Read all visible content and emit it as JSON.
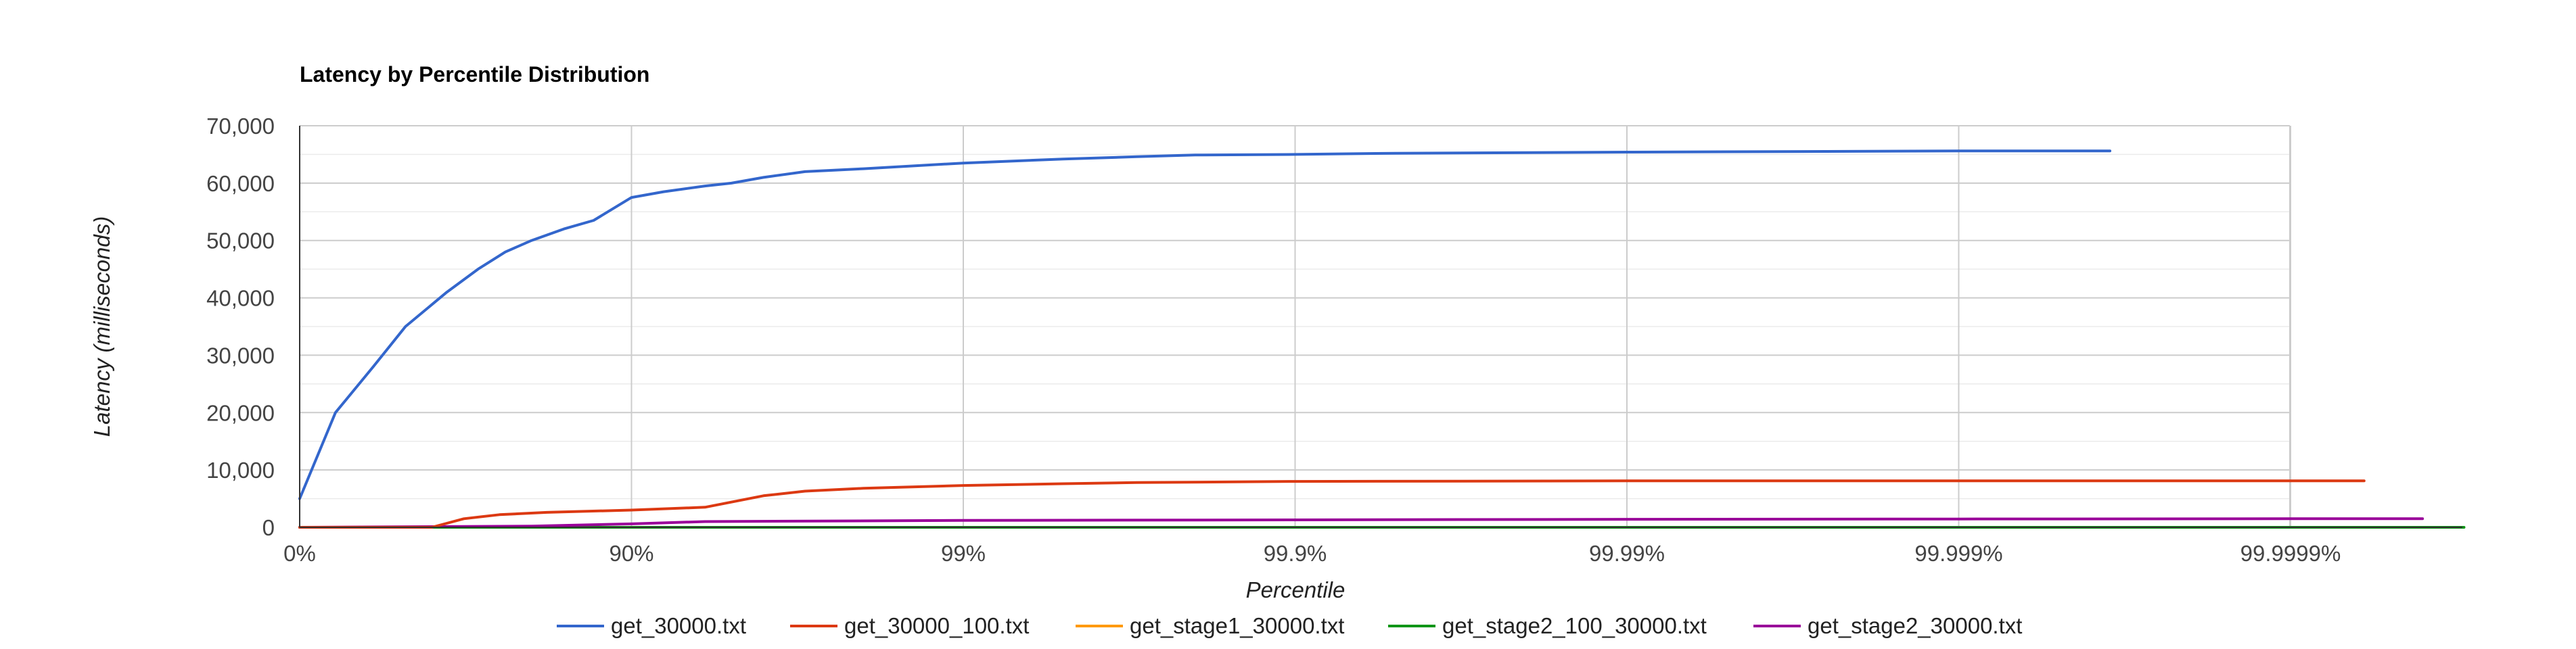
{
  "chart_data": {
    "type": "line",
    "title": "Latency by Percentile Distribution",
    "xlabel": "Percentile",
    "ylabel": "Latency (milliseconds)",
    "x_axis_scale": "log-percentile",
    "x_ticks": [
      "0%",
      "90%",
      "99%",
      "99.9%",
      "99.99%",
      "99.999%",
      "99.9999%"
    ],
    "y_ticks": [
      "0",
      "10,000",
      "20,000",
      "30,000",
      "40,000",
      "50,000",
      "60,000",
      "70,000"
    ],
    "ylim": [
      0,
      70000
    ],
    "grid": true,
    "legend_position": "bottom",
    "series": [
      {
        "name": "get_30000.txt",
        "color": "#3366cc",
        "points": [
          [
            "0%",
            5000
          ],
          [
            "22%",
            20000
          ],
          [
            "40%",
            28000
          ],
          [
            "52%",
            35000
          ],
          [
            "64%",
            41000
          ],
          [
            "71%",
            45000
          ],
          [
            "76%",
            48000
          ],
          [
            "80%",
            50000
          ],
          [
            "84%",
            52000
          ],
          [
            "87%",
            53500
          ],
          [
            "90%",
            57500
          ],
          [
            "92%",
            58500
          ],
          [
            "94%",
            59500
          ],
          [
            "95%",
            60000
          ],
          [
            "96%",
            61000
          ],
          [
            "97%",
            62000
          ],
          [
            "98%",
            62500
          ],
          [
            "99%",
            63500
          ],
          [
            "99.5%",
            64200
          ],
          [
            "99.7%",
            64600
          ],
          [
            "99.8%",
            64900
          ],
          [
            "99.9%",
            65000
          ],
          [
            "99.95%",
            65200
          ],
          [
            "99.99%",
            65400
          ],
          [
            "99.999%",
            65600
          ],
          [
            "99.99965%",
            65600
          ]
        ]
      },
      {
        "name": "get_30000_100.txt",
        "color": "#dc3912",
        "points": [
          [
            "0%",
            0
          ],
          [
            "60%",
            0
          ],
          [
            "68%",
            1500
          ],
          [
            "75%",
            2200
          ],
          [
            "82%",
            2600
          ],
          [
            "90%",
            3000
          ],
          [
            "94%",
            3500
          ],
          [
            "96%",
            5500
          ],
          [
            "97%",
            6300
          ],
          [
            "98%",
            6800
          ],
          [
            "99%",
            7300
          ],
          [
            "99.5%",
            7600
          ],
          [
            "99.7%",
            7800
          ],
          [
            "99.9%",
            8000
          ],
          [
            "99.99%",
            8100
          ],
          [
            "99.999%",
            8100
          ],
          [
            "99.99994%",
            8100
          ]
        ]
      },
      {
        "name": "get_stage1_30000.txt",
        "color": "#ff9900",
        "points": [
          [
            "0%",
            0
          ],
          [
            "90%",
            0
          ],
          [
            "99%",
            0
          ],
          [
            "99.9%",
            0
          ],
          [
            "99.99%",
            0
          ],
          [
            "99.999%",
            0
          ],
          [
            "99.9999%",
            0
          ]
        ]
      },
      {
        "name": "get_stage2_100_30000.txt",
        "color": "#109618",
        "points": [
          [
            "0%",
            0
          ],
          [
            "90%",
            0
          ],
          [
            "99%",
            0
          ],
          [
            "99.9%",
            0
          ],
          [
            "99.99%",
            0
          ],
          [
            "99.999%",
            0
          ],
          [
            "99.9999%",
            0
          ],
          [
            "99.99997%",
            0
          ]
        ]
      },
      {
        "name": "get_stage2_30000.txt",
        "color": "#990099",
        "points": [
          [
            "0%",
            0
          ],
          [
            "80%",
            200
          ],
          [
            "90%",
            600
          ],
          [
            "94%",
            1000
          ],
          [
            "99%",
            1200
          ],
          [
            "99.9%",
            1300
          ],
          [
            "99.99%",
            1400
          ],
          [
            "99.999%",
            1450
          ],
          [
            "99.9999%",
            1500
          ],
          [
            "99.99996%",
            1500
          ]
        ]
      }
    ]
  }
}
